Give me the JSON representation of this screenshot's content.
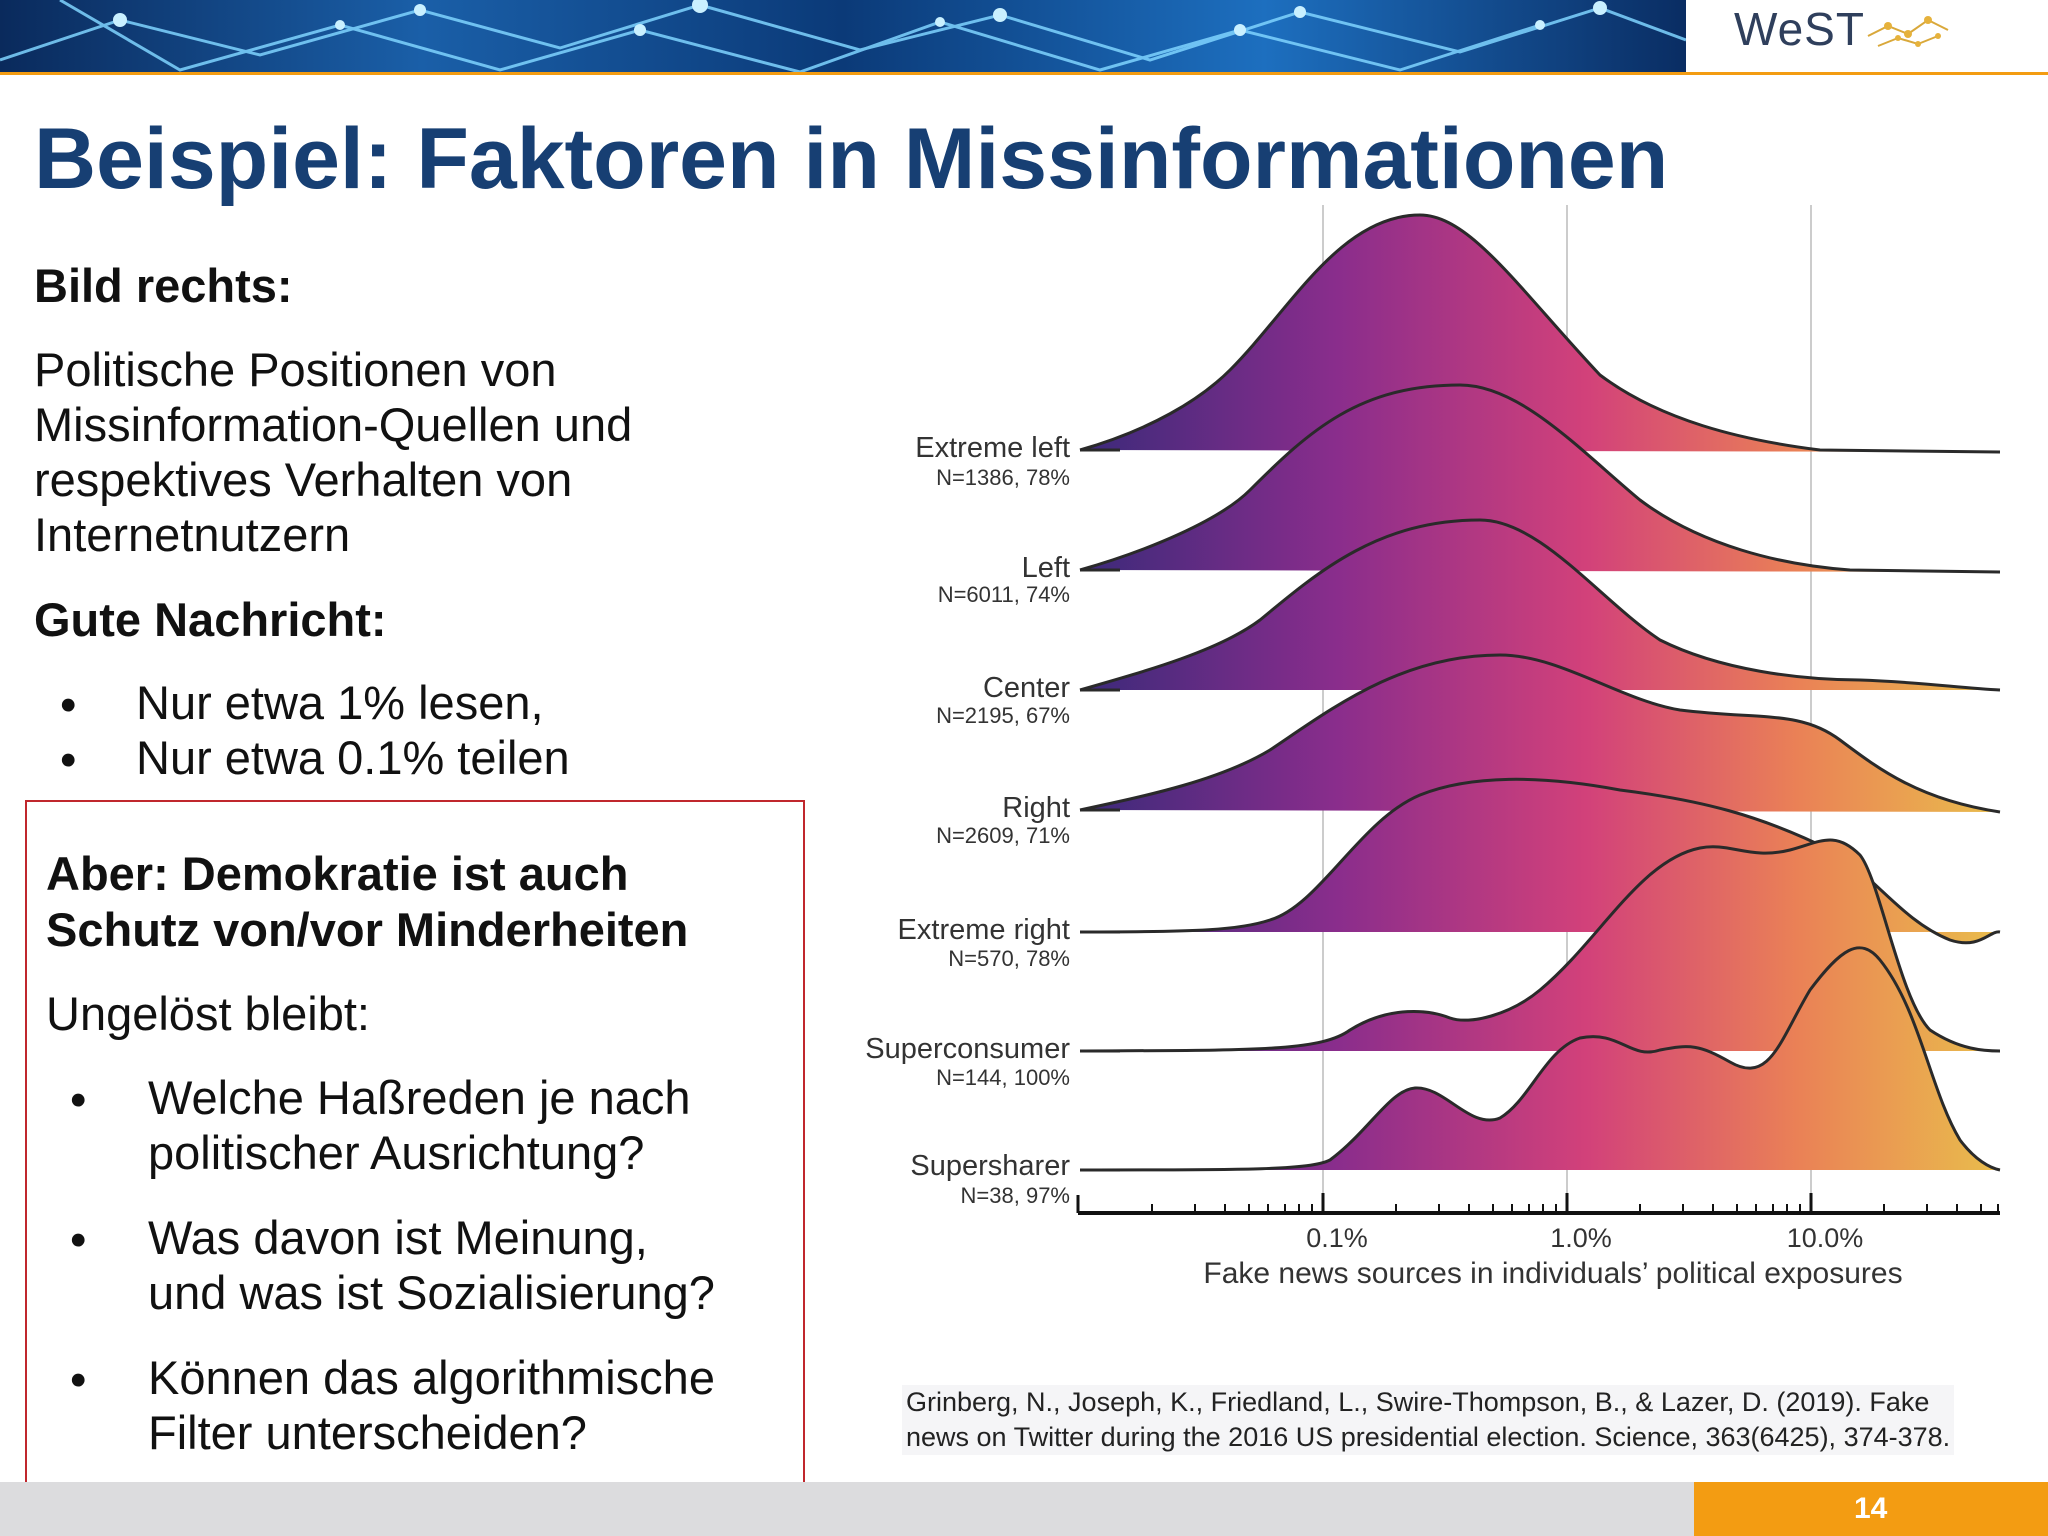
{
  "header": {
    "logo_text": "WeST",
    "title": "Beispiel: Faktoren in Missinformationen"
  },
  "left": {
    "heading1": "Bild rechts:",
    "paragraph_lines": [
      "Politische Positionen von",
      "Missinformation-Quellen und",
      "respektives Verhalten von",
      "Internetnutzern"
    ],
    "heading2": "Gute Nachricht:",
    "bullets": [
      "Nur etwa 1% lesen,",
      "Nur etwa 0.1% teilen"
    ]
  },
  "box": {
    "heading_lines": [
      "Aber: Demokratie ist auch",
      "Schutz von/vor Minderheiten"
    ],
    "intro": "Ungelöst bleibt:",
    "bullets": [
      [
        "Welche Haßreden je nach",
        "politischer Ausrichtung?"
      ],
      [
        "Was davon ist Meinung,",
        "und was ist Sozialisierung?"
      ],
      [
        "Können das algorithmische",
        "Filter unterscheiden?"
      ]
    ]
  },
  "chart_data": {
    "type": "ridgeline",
    "xlabel": "Fake news sources in individuals’ political exposures",
    "x_scale": "log",
    "x_ticks": [
      "0.1%",
      "1.0%",
      "10.0%"
    ],
    "colors": [
      "#3b2a7a",
      "#8a2d8c",
      "#d2417a",
      "#ea8156",
      "#e9bd4c"
    ],
    "series": [
      {
        "name": "Extreme left",
        "sub": "N=1386, 78%"
      },
      {
        "name": "Left",
        "sub": "N=6011, 74%"
      },
      {
        "name": "Center",
        "sub": "N=2195, 67%"
      },
      {
        "name": "Right",
        "sub": "N=2609, 71%"
      },
      {
        "name": "Extreme right",
        "sub": "N=570, 78%"
      },
      {
        "name": "Superconsumer",
        "sub": "N=144, 100%"
      },
      {
        "name": "Supersharer",
        "sub": "N=38, 97%"
      }
    ]
  },
  "citation_lines": [
    "Grinberg, N., Joseph, K., Friedland, L., Swire-Thompson, B., & Lazer, D. (2019). Fake",
    "news on Twitter during the 2016 US presidential election. Science, 363(6425), 374-378."
  ],
  "footer": {
    "page_number": "14"
  }
}
